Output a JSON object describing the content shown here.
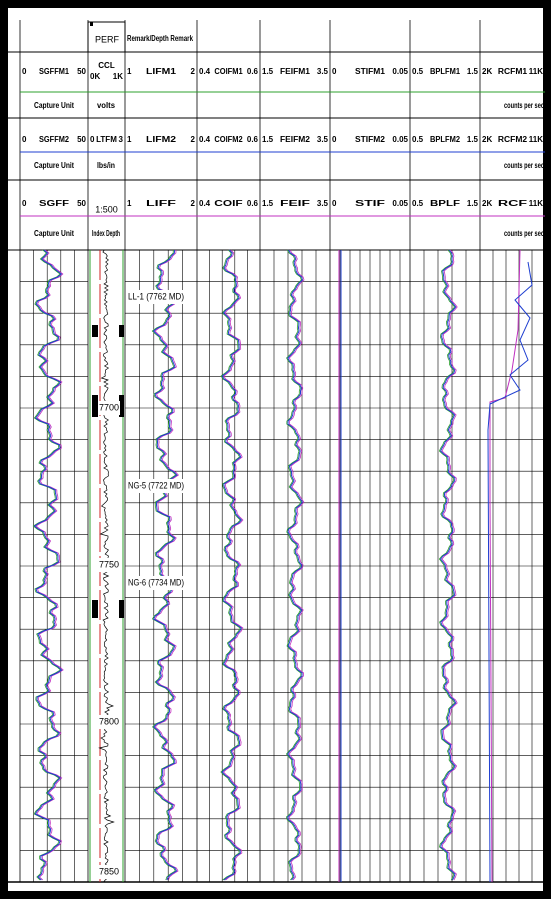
{
  "header": {
    "perf": "PERF",
    "remark": "Remark/Depth Remark"
  },
  "curve_rows": [
    {
      "scales": [
        {
          "left": "0",
          "name": "SGFFM1",
          "right": "50"
        },
        {
          "left": "0K",
          "name": "CCL",
          "right": "1K"
        },
        {
          "left": "1",
          "name": "LIFM1",
          "right": "2"
        },
        {
          "left": "0.4",
          "name": "COIFM1",
          "right": "0.6"
        },
        {
          "left": "1.5",
          "name": "FEIFM1",
          "right": "3.5"
        },
        {
          "left": "0",
          "name": "STIFM1",
          "right": "0.05"
        },
        {
          "left": "0.5",
          "name": "BPLFM1",
          "right": "1.5"
        },
        {
          "left": "2K",
          "name": "RCFM1",
          "right": "11K"
        }
      ],
      "left_unit": "Capture Unit",
      "depth_unit": "volts",
      "right_unit": "counts per sec"
    },
    {
      "scales": [
        {
          "left": "0",
          "name": "SGFFM2",
          "right": "50"
        },
        {
          "left": "0",
          "name": "LTFM",
          "right": "3"
        },
        {
          "left": "1",
          "name": "LIFM2",
          "right": "2"
        },
        {
          "left": "0.4",
          "name": "COIFM2",
          "right": "0.6"
        },
        {
          "left": "1.5",
          "name": "FEIFM2",
          "right": "3.5"
        },
        {
          "left": "0",
          "name": "STIFM2",
          "right": "0.05"
        },
        {
          "left": "0.5",
          "name": "BPLFM2",
          "right": "1.5"
        },
        {
          "left": "2K",
          "name": "RCFM2",
          "right": "11K"
        }
      ],
      "left_unit": "Capture Unit",
      "depth_unit": "lbs/in",
      "right_unit": "counts per sec"
    },
    {
      "scales": [
        {
          "left": "0",
          "name": "SGFF",
          "right": "50"
        },
        {
          "name": "1:500"
        },
        {
          "left": "1",
          "name": "LIFF",
          "right": "2"
        },
        {
          "left": "0.4",
          "name": "COIF",
          "right": "0.6"
        },
        {
          "left": "1.5",
          "name": "FEIF",
          "right": "3.5"
        },
        {
          "left": "0",
          "name": "STIF",
          "right": "0.05"
        },
        {
          "left": "0.5",
          "name": "BPLF",
          "right": "1.5"
        },
        {
          "left": "2K",
          "name": "RCF",
          "right": "11K"
        }
      ],
      "left_unit": "Capture Unit",
      "depth_unit": "Index Depth",
      "right_unit": "counts per sec"
    }
  ],
  "depth_labels": [
    "7700",
    "7750",
    "7800",
    "7850"
  ],
  "annotations": [
    "LL-1 (7762 MD)",
    "NG-5 (7722 MD)",
    "NG-6 (7734 MD)"
  ]
}
